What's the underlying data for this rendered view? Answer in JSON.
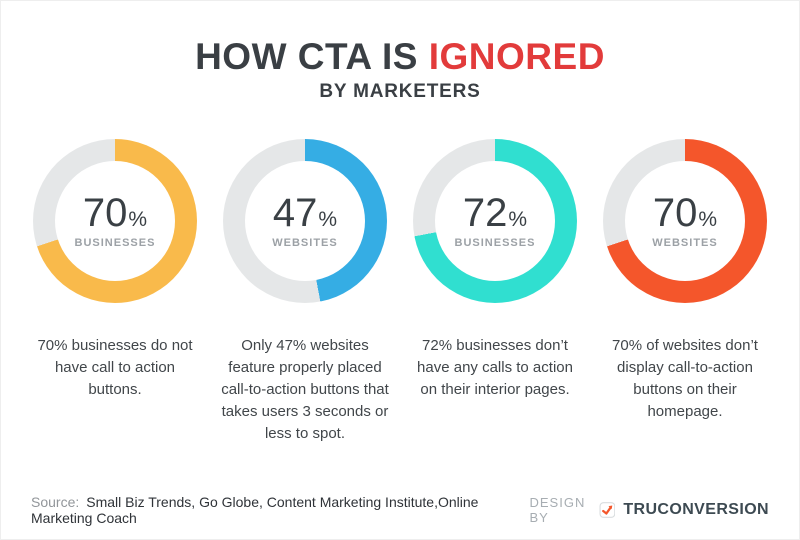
{
  "header": {
    "title_dark": "HOW CTA IS",
    "title_red": "IGNORED",
    "subtitle": "BY MARKETERS",
    "title_color": "#3a3f44",
    "accent_color": "#e23b3b"
  },
  "chart_data": [
    {
      "type": "pie",
      "variant": "donut",
      "value": 70,
      "unit": "%",
      "label": "BUSINESSES",
      "color": "#f9ba4b",
      "track_color": "#e5e7e8",
      "start_angle_deg": 0,
      "direction": "clockwise",
      "description": "70% businesses do not have call to action buttons."
    },
    {
      "type": "pie",
      "variant": "donut",
      "value": 47,
      "unit": "%",
      "label": "WEBSITES",
      "color": "#35ade4",
      "track_color": "#e5e7e8",
      "start_angle_deg": 0,
      "direction": "clockwise",
      "description": "Only 47% websites feature properly placed call-to-action buttons that takes users 3 seconds or less to spot."
    },
    {
      "type": "pie",
      "variant": "donut",
      "value": 72,
      "unit": "%",
      "label": "BUSINESSES",
      "color": "#30dfd0",
      "track_color": "#e5e7e8",
      "start_angle_deg": 0,
      "direction": "clockwise",
      "description": "72% businesses don’t have any calls to action on their interior pages."
    },
    {
      "type": "pie",
      "variant": "donut",
      "value": 70,
      "unit": "%",
      "label": "WEBSITES",
      "color": "#f4562b",
      "track_color": "#e5e7e8",
      "start_angle_deg": 0,
      "direction": "clockwise",
      "description": "70% of websites don’t display call-to-action buttons on their homepage."
    }
  ],
  "footer": {
    "source_label": "Source:",
    "source_text": "Small Biz Trends, Go Globe, Content Marketing Institute,Online Marketing Coach",
    "design_by_label": "DESIGN BY",
    "brand_name": "TRUCONVERSION",
    "brand_color": "#3d4a52",
    "logo_accent_color": "#f4562b"
  }
}
